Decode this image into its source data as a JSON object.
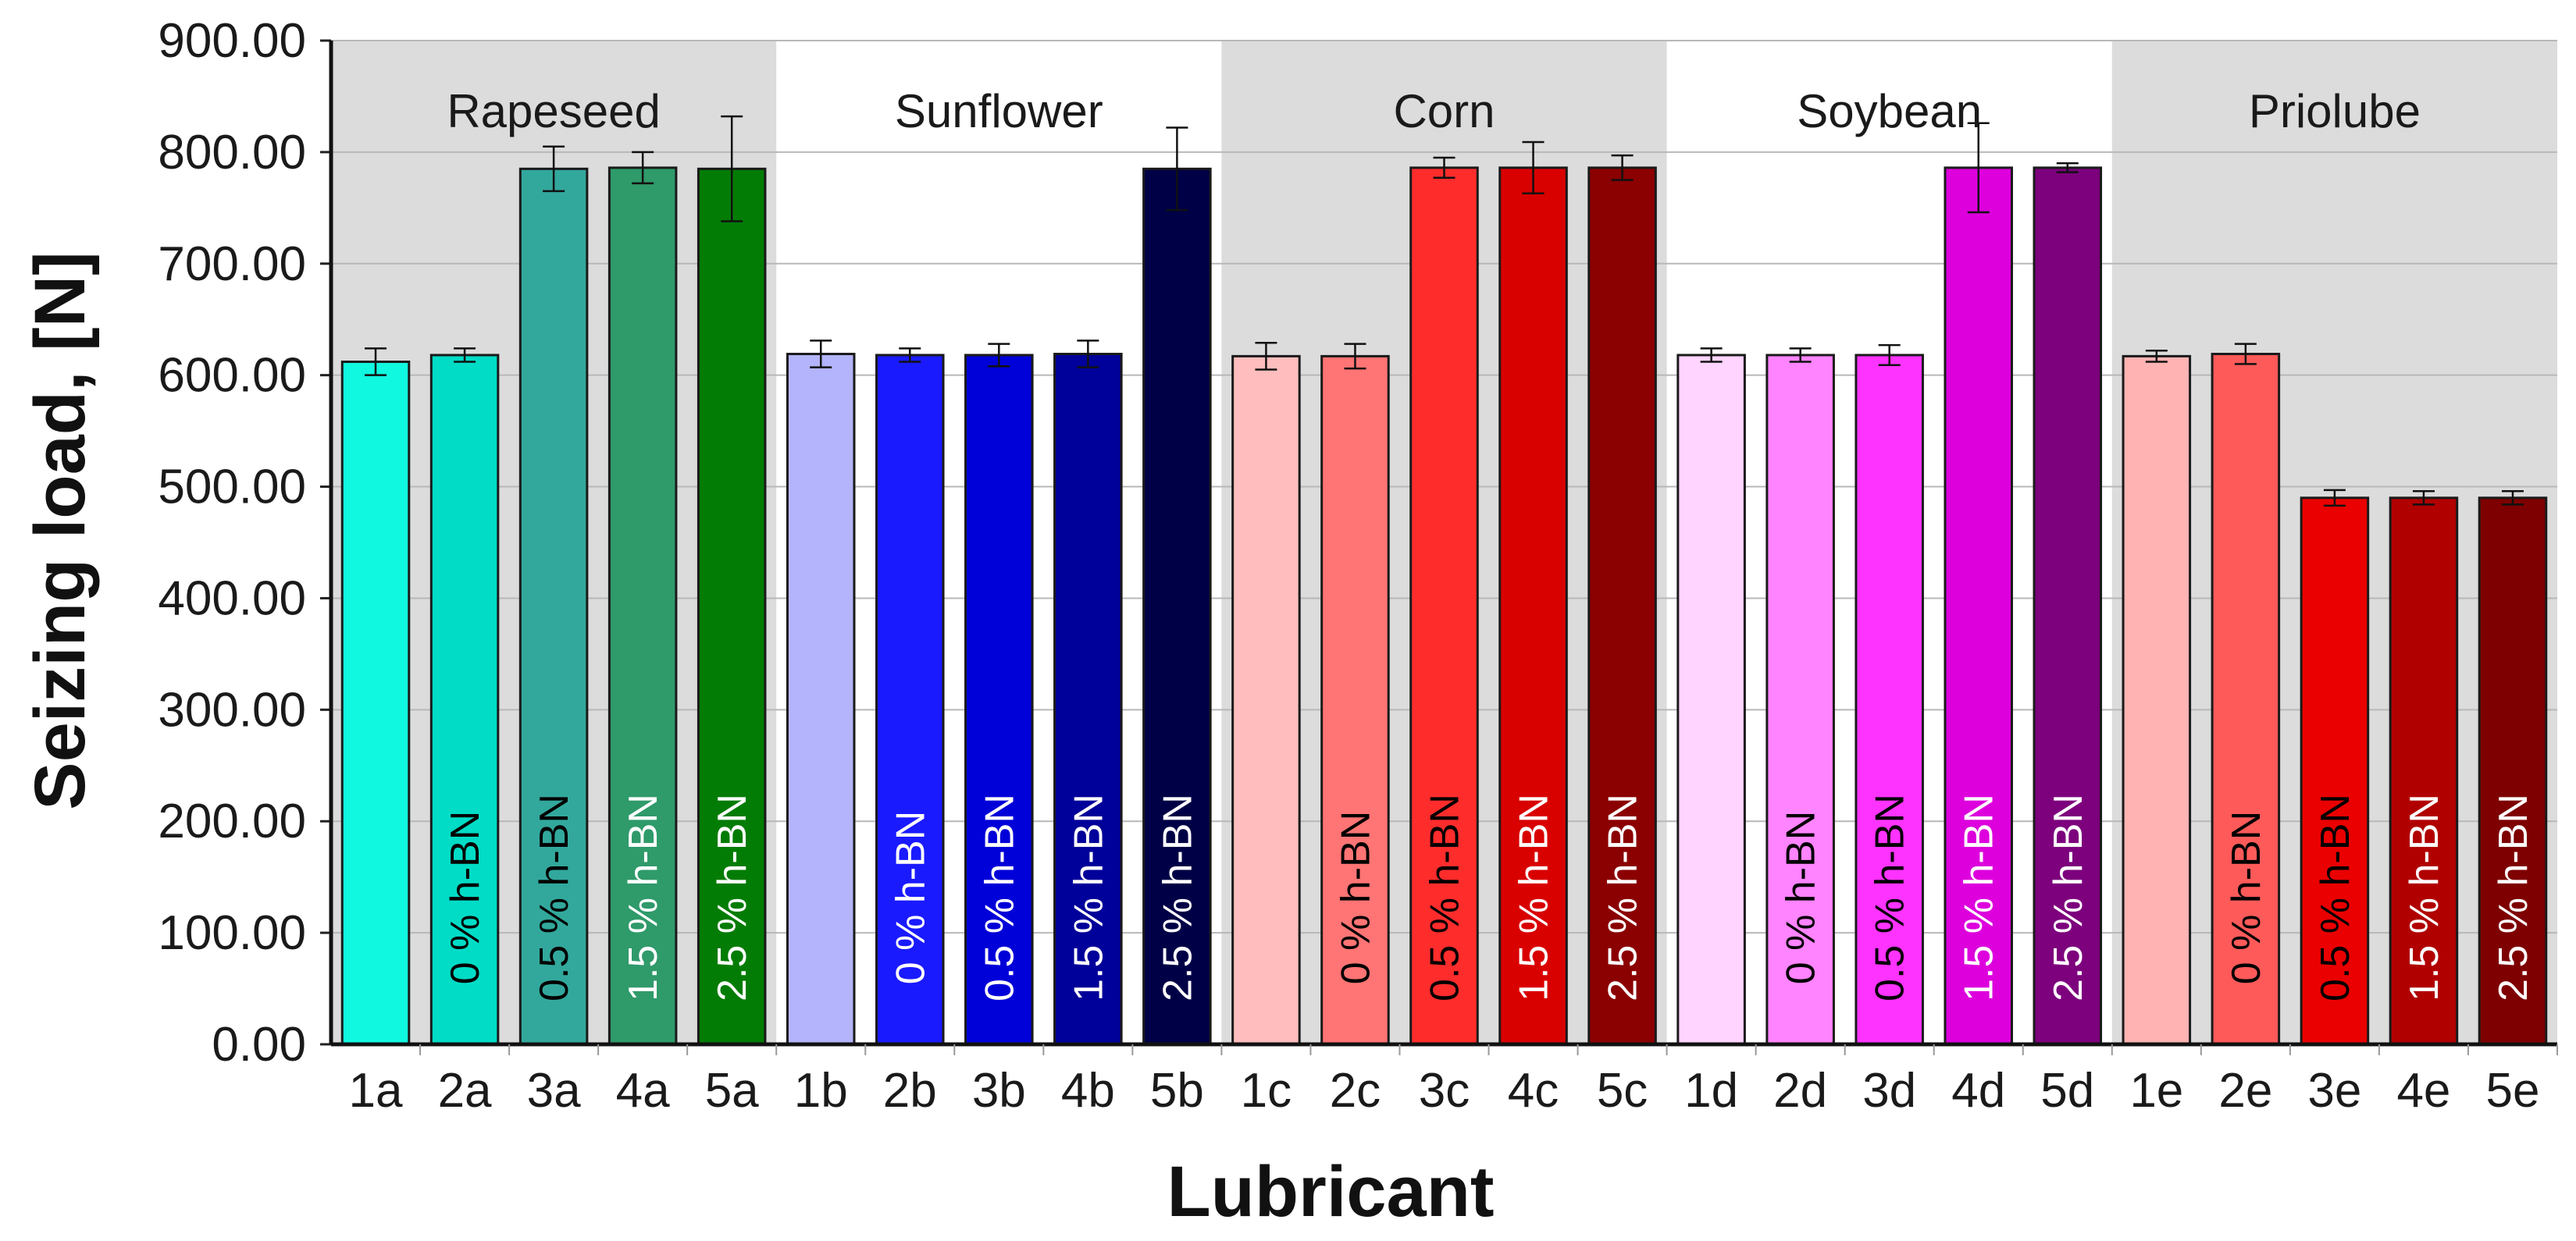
{
  "chart_data": {
    "type": "bar",
    "title": "",
    "xlabel": "Lubricant",
    "ylabel": "Seizing load, [N]",
    "ylim": [
      0,
      900
    ],
    "yticks": [
      "0.00",
      "100.00",
      "200.00",
      "300.00",
      "400.00",
      "500.00",
      "600.00",
      "700.00",
      "800.00",
      "900.00"
    ],
    "grid": "horizontal",
    "groups": [
      {
        "name": "Rapeseed",
        "shaded": true
      },
      {
        "name": "Sunflower",
        "shaded": false
      },
      {
        "name": "Corn",
        "shaded": true
      },
      {
        "name": "Soybean",
        "shaded": false
      },
      {
        "name": "Priolube",
        "shaded": true
      }
    ],
    "bars": [
      {
        "category": "1a",
        "value": 612,
        "error": 12,
        "label": "",
        "color": "#11f8e0",
        "label_color": "#000000"
      },
      {
        "category": "2a",
        "value": 618,
        "error": 6,
        "label": "0 % h-BN",
        "color": "#00dcc6",
        "label_color": "#000000"
      },
      {
        "category": "3a",
        "value": 785,
        "error": 20,
        "label": "0.5 % h-BN",
        "color": "#32a89c",
        "label_color": "#000000"
      },
      {
        "category": "4a",
        "value": 786,
        "error": 14,
        "label": "1.5 % h-BN",
        "color": "#2f9a6a",
        "label_color": "#ffffff"
      },
      {
        "category": "5a",
        "value": 785,
        "error": 47,
        "label": "2.5 % h-BN",
        "color": "#037c05",
        "label_color": "#ffffff"
      },
      {
        "category": "1b",
        "value": 619,
        "error": 12,
        "label": "",
        "color": "#b4b4fc",
        "label_color": "#000000"
      },
      {
        "category": "2b",
        "value": 618,
        "error": 6,
        "label": "0 % h-BN",
        "color": "#1a1aff",
        "label_color": "#ffffff"
      },
      {
        "category": "3b",
        "value": 618,
        "error": 10,
        "label": "0.5 % h-BN",
        "color": "#0000d8",
        "label_color": "#ffffff"
      },
      {
        "category": "4b",
        "value": 619,
        "error": 12,
        "label": "1.5 % h-BN",
        "color": "#00009a",
        "label_color": "#ffffff"
      },
      {
        "category": "5b",
        "value": 785,
        "error": 37,
        "label": "2.5 % h-BN",
        "color": "#000046",
        "label_color": "#ffffff"
      },
      {
        "category": "1c",
        "value": 617,
        "error": 12,
        "label": "",
        "color": "#ffbdbd",
        "label_color": "#000000"
      },
      {
        "category": "2c",
        "value": 617,
        "error": 11,
        "label": "0 % h-BN",
        "color": "#ff7474",
        "label_color": "#000000"
      },
      {
        "category": "3c",
        "value": 786,
        "error": 9,
        "label": "0.5 % h-BN",
        "color": "#ff2c2c",
        "label_color": "#000000"
      },
      {
        "category": "4c",
        "value": 786,
        "error": 23,
        "label": "1.5 % h-BN",
        "color": "#d90000",
        "label_color": "#ffffff"
      },
      {
        "category": "5c",
        "value": 786,
        "error": 11,
        "label": "2.5 % h-BN",
        "color": "#8b0000",
        "label_color": "#ffffff"
      },
      {
        "category": "1d",
        "value": 618,
        "error": 6,
        "label": "",
        "color": "#ffd4ff",
        "label_color": "#000000"
      },
      {
        "category": "2d",
        "value": 618,
        "error": 6,
        "label": "0 % h-BN",
        "color": "#ff84ff",
        "label_color": "#000000"
      },
      {
        "category": "3d",
        "value": 618,
        "error": 9,
        "label": "0.5 % h-BN",
        "color": "#ff33ff",
        "label_color": "#000000"
      },
      {
        "category": "4d",
        "value": 786,
        "error": 40,
        "label": "1.5 % h-BN",
        "color": "#dd00dd",
        "label_color": "#ffffff"
      },
      {
        "category": "5d",
        "value": 786,
        "error": 4,
        "label": "2.5 % h-BN",
        "color": "#7d007d",
        "label_color": "#ffffff"
      },
      {
        "category": "1e",
        "value": 617,
        "error": 5,
        "label": "",
        "color": "#ffb3b3",
        "label_color": "#000000"
      },
      {
        "category": "2e",
        "value": 619,
        "error": 9,
        "label": "0 % h-BN",
        "color": "#ff5a5a",
        "label_color": "#000000"
      },
      {
        "category": "3e",
        "value": 490,
        "error": 7,
        "label": "0.5 % h-BN",
        "color": "#ea0000",
        "label_color": "#000000"
      },
      {
        "category": "4e",
        "value": 490,
        "error": 6,
        "label": "1.5 % h-BN",
        "color": "#b10000",
        "label_color": "#ffffff"
      },
      {
        "category": "5e",
        "value": 490,
        "error": 6,
        "label": "2.5 % h-BN",
        "color": "#7e0000",
        "label_color": "#ffffff"
      }
    ]
  }
}
